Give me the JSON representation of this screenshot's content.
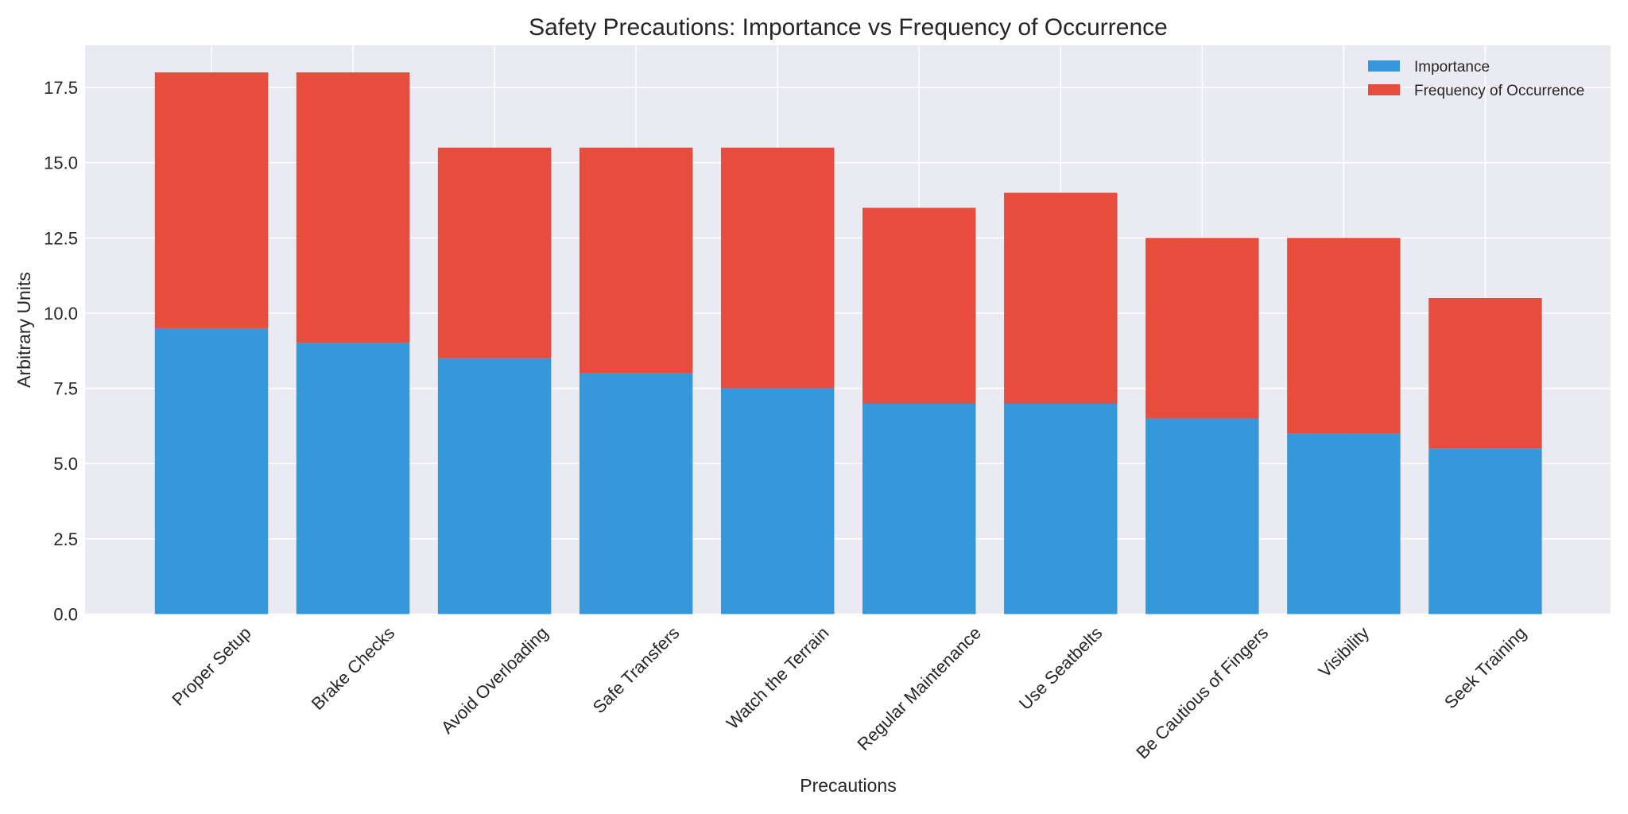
{
  "chart_data": {
    "type": "bar",
    "stacked": true,
    "title": "Safety Precautions: Importance vs Frequency of Occurrence",
    "xlabel": "Precautions",
    "ylabel": "Arbitrary Units",
    "categories": [
      "Proper Setup",
      "Brake Checks",
      "Avoid Overloading",
      "Safe Transfers",
      "Watch the Terrain",
      "Regular Maintenance",
      "Use Seatbelts",
      "Be Cautious of Fingers",
      "Visibility",
      "Seek Training"
    ],
    "series": [
      {
        "name": "Importance",
        "color": "#3498db",
        "values": [
          9.5,
          9.0,
          8.5,
          8.0,
          7.5,
          7.0,
          7.0,
          6.5,
          6.0,
          5.5
        ]
      },
      {
        "name": "Frequency of Occurrence",
        "color": "#e74c3c",
        "values": [
          8.5,
          9.0,
          7.0,
          7.5,
          8.0,
          6.5,
          7.0,
          6.0,
          6.5,
          5.0
        ]
      }
    ],
    "ylim": [
      0,
      18.9
    ],
    "yticks": [
      0.0,
      2.5,
      5.0,
      7.5,
      10.0,
      12.5,
      15.0,
      17.5
    ],
    "ytick_labels": [
      "0.0",
      "2.5",
      "5.0",
      "7.5",
      "10.0",
      "12.5",
      "15.0",
      "17.5"
    ],
    "xtick_rotation_deg": 45,
    "grid": true,
    "legend_position": "top-right",
    "background_color": "#eaeaf2",
    "grid_color": "#ffffff"
  }
}
